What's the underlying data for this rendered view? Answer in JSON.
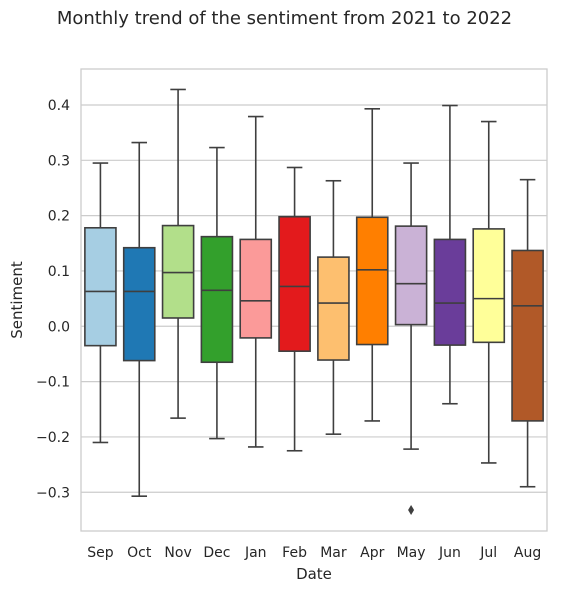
{
  "chart_data": {
    "type": "box",
    "title": "Monthly trend of the sentiment from 2021 to 2022",
    "xlabel": "Date",
    "ylabel": "Sentiment",
    "ylim": [
      -0.37,
      0.465
    ],
    "yticks": [
      -0.3,
      -0.2,
      -0.1,
      0.0,
      0.1,
      0.2,
      0.3,
      0.4
    ],
    "ytick_labels": [
      "−0.3",
      "−0.2",
      "−0.1",
      "0.0",
      "0.1",
      "0.2",
      "0.3",
      "0.4"
    ],
    "grid": true,
    "categories": [
      "Sep",
      "Oct",
      "Nov",
      "Dec",
      "Jan",
      "Feb",
      "Mar",
      "Apr",
      "May",
      "Jun",
      "Jul",
      "Aug"
    ],
    "boxes": [
      {
        "label": "Sep",
        "whislo": -0.21,
        "q1": -0.035,
        "med": 0.063,
        "q3": 0.178,
        "whishi": 0.295,
        "fliers": [],
        "color": "#a6cee3"
      },
      {
        "label": "Oct",
        "whislo": -0.307,
        "q1": -0.062,
        "med": 0.063,
        "q3": 0.142,
        "whishi": 0.332,
        "fliers": [],
        "color": "#1f78b4"
      },
      {
        "label": "Nov",
        "whislo": -0.166,
        "q1": 0.015,
        "med": 0.097,
        "q3": 0.182,
        "whishi": 0.428,
        "fliers": [],
        "color": "#b2df8a"
      },
      {
        "label": "Dec",
        "whislo": -0.203,
        "q1": -0.065,
        "med": 0.065,
        "q3": 0.162,
        "whishi": 0.323,
        "fliers": [],
        "color": "#33a02c"
      },
      {
        "label": "Jan",
        "whislo": -0.218,
        "q1": -0.021,
        "med": 0.046,
        "q3": 0.157,
        "whishi": 0.379,
        "fliers": [],
        "color": "#fb9a99"
      },
      {
        "label": "Feb",
        "whislo": -0.225,
        "q1": -0.045,
        "med": 0.072,
        "q3": 0.198,
        "whishi": 0.287,
        "fliers": [],
        "color": "#e31a1c"
      },
      {
        "label": "Mar",
        "whislo": -0.195,
        "q1": -0.061,
        "med": 0.042,
        "q3": 0.125,
        "whishi": 0.263,
        "fliers": [],
        "color": "#fdbf6f"
      },
      {
        "label": "Apr",
        "whislo": -0.171,
        "q1": -0.033,
        "med": 0.102,
        "q3": 0.197,
        "whishi": 0.393,
        "fliers": [],
        "color": "#ff7f00"
      },
      {
        "label": "May",
        "whislo": -0.222,
        "q1": 0.003,
        "med": 0.077,
        "q3": 0.181,
        "whishi": 0.295,
        "fliers": [
          -0.332
        ],
        "color": "#cab2d6"
      },
      {
        "label": "Jun",
        "whislo": -0.14,
        "q1": -0.034,
        "med": 0.042,
        "q3": 0.157,
        "whishi": 0.399,
        "fliers": [],
        "color": "#6a3d9a"
      },
      {
        "label": "Jul",
        "whislo": -0.247,
        "q1": -0.029,
        "med": 0.05,
        "q3": 0.176,
        "whishi": 0.37,
        "fliers": [],
        "color": "#ffff99"
      },
      {
        "label": "Aug",
        "whislo": -0.29,
        "q1": -0.171,
        "med": 0.037,
        "q3": 0.137,
        "whishi": 0.265,
        "fliers": [],
        "color": "#b15928"
      }
    ],
    "style": {
      "line_color": "#3f3f3f",
      "grid_color": "#cccccc",
      "frame_color": "#cccccc",
      "background": "#ffffff"
    }
  }
}
